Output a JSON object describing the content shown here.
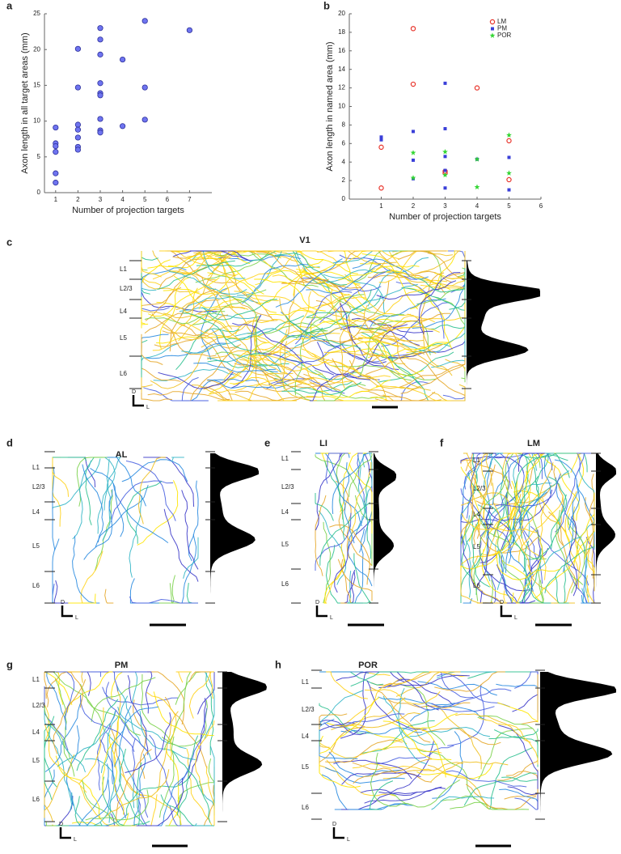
{
  "chart_data": [
    {
      "type": "scatter",
      "panel_label": "a",
      "xlabel": "Number of projection targets",
      "ylabel": "Axon length in all target areas (mm)",
      "x": [
        1,
        1,
        1,
        1,
        1,
        1,
        2,
        2,
        2,
        2,
        2,
        2,
        2,
        3,
        3,
        3,
        3,
        3,
        3,
        3,
        3,
        3,
        4,
        4,
        5,
        5,
        5,
        7
      ],
      "values": [
        9.1,
        6.9,
        6.5,
        5.7,
        2.7,
        1.4,
        20.1,
        14.7,
        9.5,
        8.8,
        7.7,
        6.4,
        6.0,
        23.0,
        21.4,
        19.3,
        15.3,
        13.9,
        13.6,
        10.3,
        8.7,
        8.4,
        18.6,
        9.3,
        24.0,
        14.7,
        10.2,
        22.7
      ],
      "color": "#6f74f0",
      "xlim": [
        0.5,
        8
      ],
      "ylim": [
        0,
        25
      ],
      "xticks": [
        1,
        2,
        3,
        4,
        5,
        6,
        7
      ],
      "yticks": [
        0,
        5,
        10,
        15,
        20,
        25
      ]
    },
    {
      "type": "scatter",
      "panel_label": "b",
      "xlabel": "Number of projection targets",
      "ylabel": "Axon length in named area (mm)",
      "series": [
        {
          "name": "LM",
          "color": "#e8332a",
          "marker": "circle",
          "x": [
            1,
            1,
            2,
            2,
            3,
            3,
            4,
            5,
            5
          ],
          "values": [
            1.2,
            5.6,
            18.4,
            12.4,
            2.8,
            3.0,
            12.0,
            6.3,
            2.1
          ]
        },
        {
          "name": "PM",
          "color": "#3a3fd8",
          "marker": "square",
          "x": [
            1,
            1,
            2,
            2,
            2,
            3,
            3,
            3,
            3,
            3,
            4,
            5,
            5
          ],
          "values": [
            6.7,
            6.4,
            7.3,
            4.2,
            2.2,
            12.5,
            7.6,
            4.6,
            3.1,
            1.2,
            4.3,
            4.5,
            1.0
          ]
        },
        {
          "name": "POR",
          "color": "#33d633",
          "marker": "star",
          "x": [
            2,
            2,
            3,
            3,
            4,
            4,
            5,
            5
          ],
          "values": [
            5.0,
            2.3,
            5.1,
            2.6,
            4.3,
            1.3,
            6.9,
            2.8
          ]
        }
      ],
      "legend": "upper right",
      "xlim": [
        0,
        6
      ],
      "ylim": [
        0,
        20
      ],
      "xticks": [
        1,
        2,
        3,
        4,
        5,
        6
      ],
      "yticks": [
        0,
        2,
        4,
        6,
        8,
        10,
        12,
        14,
        16,
        18,
        20
      ]
    }
  ],
  "panels": [
    {
      "label": "c",
      "title": "V1",
      "layers": [
        "L1",
        "L2/3",
        "L4",
        "L5",
        "L6"
      ],
      "axes": [
        "D",
        "L"
      ]
    },
    {
      "label": "d",
      "title": "AL",
      "layers": [
        "L1",
        "L2/3",
        "L4",
        "L5",
        "L6"
      ],
      "axes": [
        "D",
        "L"
      ]
    },
    {
      "label": "e",
      "title": "LI",
      "layers": [
        "L1",
        "L2/3",
        "L4",
        "L5",
        "L6"
      ],
      "axes": [
        "D",
        "L"
      ]
    },
    {
      "label": "f",
      "title": "LM",
      "layers": [
        "L1",
        "L2/3",
        "L4",
        "L5",
        "L6"
      ],
      "axes": [
        "D",
        "L"
      ]
    },
    {
      "label": "g",
      "title": "PM",
      "layers": [
        "L1",
        "L2/3",
        "L4",
        "L5",
        "L6"
      ],
      "axes": [
        "D",
        "L"
      ]
    },
    {
      "label": "h",
      "title": "POR",
      "layers": [
        "L1",
        "L2/3",
        "L4",
        "L5",
        "L6"
      ],
      "axes": [
        "D",
        "L"
      ]
    }
  ]
}
